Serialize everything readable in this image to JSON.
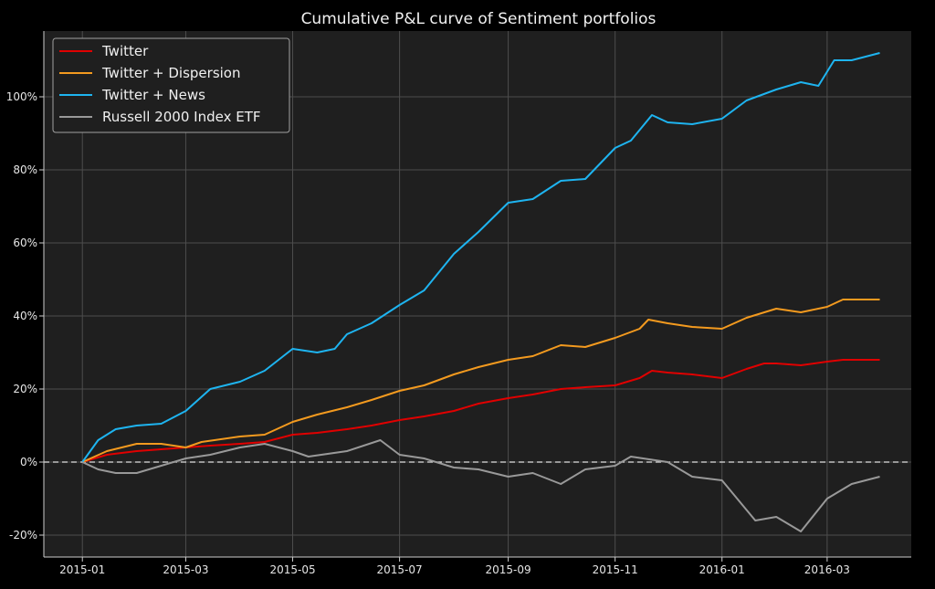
{
  "chart_data": {
    "type": "line",
    "title": "Cumulative P&L curve of Sentiment portfolios",
    "xlabel": "",
    "ylabel": "",
    "x_ticks": [
      "2015-01",
      "2015-03",
      "2015-05",
      "2015-07",
      "2015-09",
      "2015-11",
      "2016-01",
      "2016-03"
    ],
    "y_ticks": [
      "-20%",
      "0%",
      "20%",
      "40%",
      "60%",
      "80%",
      "100%"
    ],
    "xlim": [
      "2014-12-10",
      "2016-04-18"
    ],
    "ylim": [
      -26,
      118
    ],
    "grid": true,
    "legend_position": "top-left",
    "zero_line": "dashed",
    "colors": {
      "background": "#1f1f1f",
      "grid": "#4d4d4d",
      "Twitter": "#e00000",
      "Twitter + Dispersion": "#f39a1f",
      "Twitter + News": "#1eb4f0",
      "Russell 2000 Index ETF": "#999999"
    },
    "series": [
      {
        "name": "Twitter",
        "color": "#e00000",
        "points": [
          [
            "2015-01-01",
            0
          ],
          [
            "2015-01-15",
            2
          ],
          [
            "2015-02-01",
            3
          ],
          [
            "2015-02-15",
            3.5
          ],
          [
            "2015-03-01",
            4
          ],
          [
            "2015-03-15",
            4.5
          ],
          [
            "2015-04-01",
            5
          ],
          [
            "2015-04-15",
            5.5
          ],
          [
            "2015-05-01",
            7.5
          ],
          [
            "2015-05-15",
            8
          ],
          [
            "2015-06-01",
            9
          ],
          [
            "2015-06-15",
            10
          ],
          [
            "2015-07-01",
            11.5
          ],
          [
            "2015-07-15",
            12.5
          ],
          [
            "2015-08-01",
            14
          ],
          [
            "2015-08-15",
            16
          ],
          [
            "2015-09-01",
            17.5
          ],
          [
            "2015-09-15",
            18.5
          ],
          [
            "2015-10-01",
            20
          ],
          [
            "2015-10-15",
            20.5
          ],
          [
            "2015-11-01",
            21
          ],
          [
            "2015-11-15",
            23
          ],
          [
            "2015-11-22",
            25
          ],
          [
            "2015-12-01",
            24.5
          ],
          [
            "2015-12-15",
            24
          ],
          [
            "2016-01-01",
            23
          ],
          [
            "2016-01-15",
            25.5
          ],
          [
            "2016-01-25",
            27
          ],
          [
            "2016-02-01",
            27
          ],
          [
            "2016-02-15",
            26.5
          ],
          [
            "2016-03-01",
            27.5
          ],
          [
            "2016-03-10",
            28
          ],
          [
            "2016-03-31",
            28
          ]
        ]
      },
      {
        "name": "Twitter + Dispersion",
        "color": "#f39a1f",
        "points": [
          [
            "2015-01-01",
            0
          ],
          [
            "2015-01-15",
            3
          ],
          [
            "2015-02-01",
            5
          ],
          [
            "2015-02-15",
            5
          ],
          [
            "2015-03-01",
            4
          ],
          [
            "2015-03-10",
            5.5
          ],
          [
            "2015-04-01",
            7
          ],
          [
            "2015-04-15",
            7.5
          ],
          [
            "2015-05-01",
            11
          ],
          [
            "2015-05-15",
            13
          ],
          [
            "2015-06-01",
            15
          ],
          [
            "2015-06-15",
            17
          ],
          [
            "2015-07-01",
            19.5
          ],
          [
            "2015-07-15",
            21
          ],
          [
            "2015-08-01",
            24
          ],
          [
            "2015-08-15",
            26
          ],
          [
            "2015-09-01",
            28
          ],
          [
            "2015-09-15",
            29
          ],
          [
            "2015-10-01",
            32
          ],
          [
            "2015-10-15",
            31.5
          ],
          [
            "2015-11-01",
            34
          ],
          [
            "2015-11-15",
            36.5
          ],
          [
            "2015-11-20",
            39
          ],
          [
            "2015-12-01",
            38
          ],
          [
            "2015-12-15",
            37
          ],
          [
            "2016-01-01",
            36.5
          ],
          [
            "2016-01-15",
            39.5
          ],
          [
            "2016-02-01",
            42
          ],
          [
            "2016-02-15",
            41
          ],
          [
            "2016-03-01",
            42.5
          ],
          [
            "2016-03-10",
            44.5
          ],
          [
            "2016-03-31",
            44.5
          ]
        ]
      },
      {
        "name": "Twitter + News",
        "color": "#1eb4f0",
        "points": [
          [
            "2015-01-01",
            0
          ],
          [
            "2015-01-10",
            6
          ],
          [
            "2015-01-20",
            9
          ],
          [
            "2015-02-01",
            10
          ],
          [
            "2015-02-15",
            10.5
          ],
          [
            "2015-03-01",
            14
          ],
          [
            "2015-03-15",
            20
          ],
          [
            "2015-04-01",
            22
          ],
          [
            "2015-04-15",
            25
          ],
          [
            "2015-05-01",
            31
          ],
          [
            "2015-05-15",
            30
          ],
          [
            "2015-05-25",
            31
          ],
          [
            "2015-06-01",
            35
          ],
          [
            "2015-06-15",
            38
          ],
          [
            "2015-07-01",
            43
          ],
          [
            "2015-07-15",
            47
          ],
          [
            "2015-08-01",
            57
          ],
          [
            "2015-08-15",
            63
          ],
          [
            "2015-09-01",
            71
          ],
          [
            "2015-09-15",
            72
          ],
          [
            "2015-10-01",
            77
          ],
          [
            "2015-10-15",
            77.5
          ],
          [
            "2015-11-01",
            86
          ],
          [
            "2015-11-10",
            88
          ],
          [
            "2015-11-22",
            95
          ],
          [
            "2015-12-01",
            93
          ],
          [
            "2015-12-15",
            92.5
          ],
          [
            "2016-01-01",
            94
          ],
          [
            "2016-01-15",
            99
          ],
          [
            "2016-02-01",
            102
          ],
          [
            "2016-02-15",
            104
          ],
          [
            "2016-02-25",
            103
          ],
          [
            "2016-03-05",
            110
          ],
          [
            "2016-03-15",
            110
          ],
          [
            "2016-03-31",
            112
          ]
        ]
      },
      {
        "name": "Russell 2000 Index ETF",
        "color": "#999999",
        "points": [
          [
            "2015-01-01",
            0
          ],
          [
            "2015-01-10",
            -2
          ],
          [
            "2015-01-20",
            -3
          ],
          [
            "2015-02-01",
            -3
          ],
          [
            "2015-02-15",
            -1
          ],
          [
            "2015-03-01",
            1
          ],
          [
            "2015-03-15",
            2
          ],
          [
            "2015-04-01",
            4
          ],
          [
            "2015-04-15",
            5
          ],
          [
            "2015-05-01",
            3
          ],
          [
            "2015-05-10",
            1.5
          ],
          [
            "2015-06-01",
            3
          ],
          [
            "2015-06-20",
            6
          ],
          [
            "2015-07-01",
            2
          ],
          [
            "2015-07-15",
            1
          ],
          [
            "2015-08-01",
            -1.5
          ],
          [
            "2015-08-15",
            -2
          ],
          [
            "2015-09-01",
            -4
          ],
          [
            "2015-09-15",
            -3
          ],
          [
            "2015-10-01",
            -6
          ],
          [
            "2015-10-15",
            -2
          ],
          [
            "2015-11-01",
            -1
          ],
          [
            "2015-11-10",
            1.5
          ],
          [
            "2015-12-01",
            0
          ],
          [
            "2015-12-15",
            -4
          ],
          [
            "2016-01-01",
            -5
          ],
          [
            "2016-01-20",
            -16
          ],
          [
            "2016-02-01",
            -15
          ],
          [
            "2016-02-15",
            -19
          ],
          [
            "2016-03-01",
            -10
          ],
          [
            "2016-03-15",
            -6
          ],
          [
            "2016-03-31",
            -4
          ]
        ]
      }
    ]
  }
}
